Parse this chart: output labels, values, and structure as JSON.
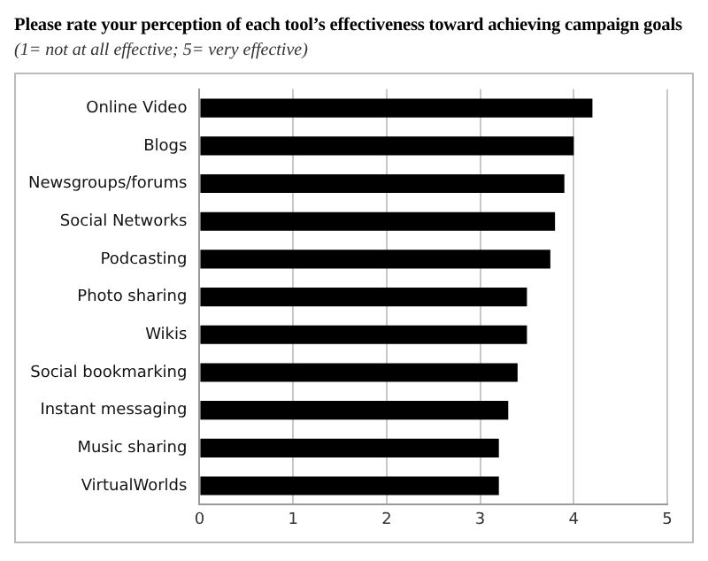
{
  "chart_data": {
    "type": "bar",
    "orientation": "horizontal",
    "title": "Please rate your perception of each tool’s effectiveness toward achieving campaign goals",
    "subtitle": "(1= not at all effective; 5= very effective)",
    "categories": [
      "Online Video",
      "Blogs",
      "Newsgroups/forums",
      "Social Networks",
      "Podcasting",
      "Photo sharing",
      "Wikis",
      "Social bookmarking",
      "Instant messaging",
      "Music sharing",
      "VirtualWorlds"
    ],
    "values": [
      4.2,
      4.0,
      3.9,
      3.8,
      3.75,
      3.5,
      3.5,
      3.4,
      3.3,
      3.2,
      3.2
    ],
    "color": "#000000",
    "xlim": [
      0,
      5
    ],
    "xticks": [
      0,
      1,
      2,
      3,
      4,
      5
    ],
    "grid": "x",
    "legend": false
  }
}
